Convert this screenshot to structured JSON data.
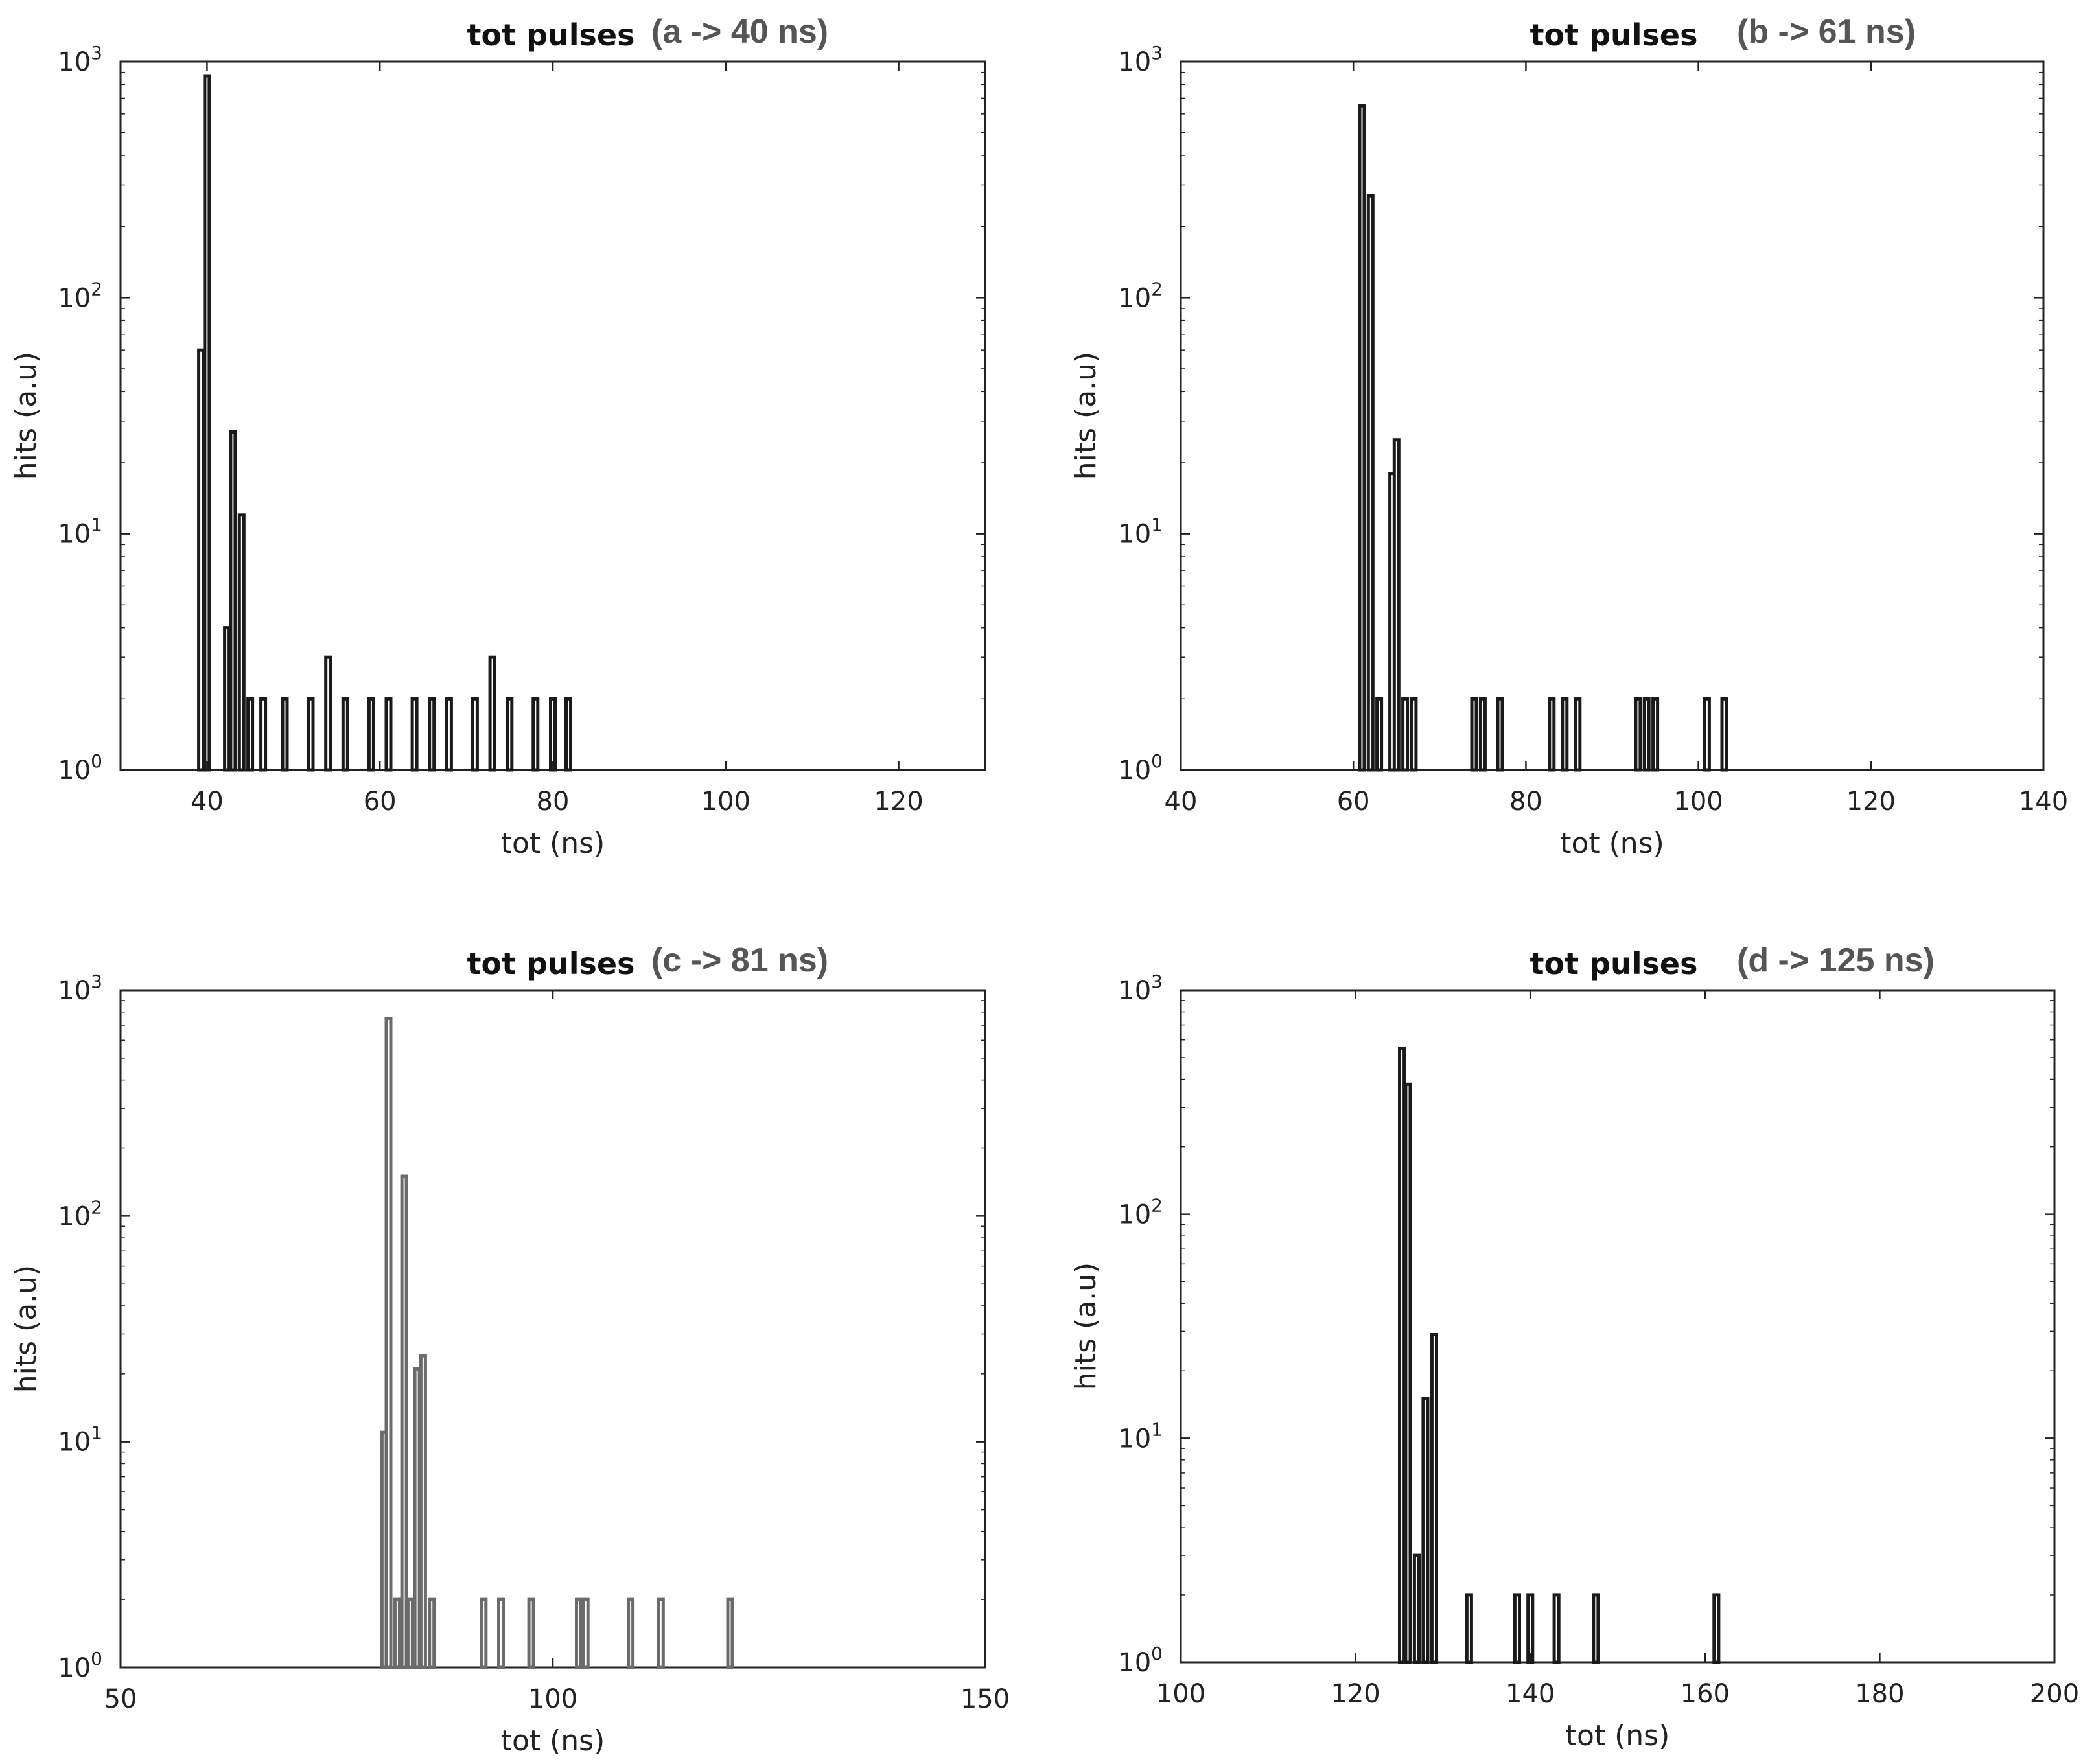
{
  "chart_data": [
    {
      "type": "bar",
      "title": "tot pulses",
      "subtitle": "(a ->  40 ns)",
      "xlabel": "tot (ns)",
      "ylabel": "hits (a.u)",
      "xlim": [
        30,
        130
      ],
      "ylim": [
        1,
        1000
      ],
      "yscale": "log",
      "xticks": [
        "40",
        "60",
        "80",
        "100",
        "120"
      ],
      "xtick_values": [
        40,
        60,
        80,
        100,
        120
      ],
      "yticks_base": "10",
      "ytick_exponents": [
        "0",
        "1",
        "2",
        "3"
      ],
      "bar_color": "#1a1a1a",
      "grid": false,
      "x": [
        39.3,
        40,
        42.3,
        43,
        44,
        45,
        46.5,
        49,
        52,
        54,
        56,
        59,
        61,
        64,
        66,
        68,
        71,
        73,
        75,
        78,
        80,
        81.8
      ],
      "values": [
        60,
        870,
        4,
        27,
        12,
        2,
        2,
        2,
        2,
        3,
        2,
        2,
        2,
        2,
        2,
        2,
        2,
        3,
        2,
        2,
        2,
        2
      ]
    },
    {
      "type": "bar",
      "title": "tot pulses",
      "subtitle": "(b -> 61 ns)",
      "xlabel": "tot (ns)",
      "ylabel": "hits (a.u)",
      "xlim": [
        40,
        140
      ],
      "ylim": [
        1,
        1000
      ],
      "yscale": "log",
      "xticks": [
        "40",
        "60",
        "80",
        "100",
        "120",
        "140"
      ],
      "xtick_values": [
        40,
        60,
        80,
        100,
        120,
        140
      ],
      "yticks_base": "10",
      "ytick_exponents": [
        "0",
        "1",
        "2",
        "3"
      ],
      "bar_color": "#1a1a1a",
      "grid": false,
      "x": [
        61,
        62,
        63,
        64.5,
        65,
        66,
        67,
        74,
        75,
        77,
        83,
        84.5,
        86,
        93,
        94,
        95,
        101,
        103
      ],
      "values": [
        650,
        270,
        2,
        18,
        25,
        2,
        2,
        2,
        2,
        2,
        2,
        2,
        2,
        2,
        2,
        2,
        2,
        2
      ]
    },
    {
      "type": "bar",
      "title": "tot pulses",
      "subtitle": "(c -> 81 ns)",
      "xlabel": "tot (ns)",
      "ylabel": "hits (a.u)",
      "xlim": [
        50,
        150
      ],
      "ylim": [
        1,
        1000
      ],
      "yscale": "log",
      "xticks": [
        "50",
        "100",
        "150"
      ],
      "xtick_values": [
        50,
        100,
        150
      ],
      "yticks_base": "10",
      "ytick_exponents": [
        "0",
        "1",
        "2",
        "3"
      ],
      "bar_color": "#6b6b6b",
      "grid": false,
      "x": [
        80.5,
        81,
        82,
        82.8,
        83.5,
        84.3,
        85,
        86,
        92,
        94,
        97.5,
        103,
        103.8,
        109,
        112.5,
        120.5
      ],
      "values": [
        11,
        750,
        2,
        150,
        2,
        21,
        24,
        2,
        2,
        2,
        2,
        2,
        2,
        2,
        2,
        2
      ]
    },
    {
      "type": "bar",
      "title": "tot pulses",
      "subtitle": "(d -> 125 ns)",
      "xlabel": "tot (ns)",
      "ylabel": "hits (a.u)",
      "xlim": [
        100,
        200
      ],
      "ylim": [
        1,
        1000
      ],
      "yscale": "log",
      "xticks": [
        "100",
        "120",
        "140",
        "160",
        "180",
        "200"
      ],
      "xtick_values": [
        100,
        120,
        140,
        160,
        180,
        200
      ],
      "yticks_base": "10",
      "ytick_exponents": [
        "0",
        "1",
        "2",
        "3"
      ],
      "bar_color": "#1a1a1a",
      "grid": false,
      "x": [
        125.3,
        126,
        127,
        128,
        129,
        133,
        138.5,
        140,
        143,
        147.5,
        161.3
      ],
      "values": [
        550,
        380,
        3,
        15,
        29,
        2,
        2,
        2,
        2,
        2,
        2
      ]
    }
  ]
}
